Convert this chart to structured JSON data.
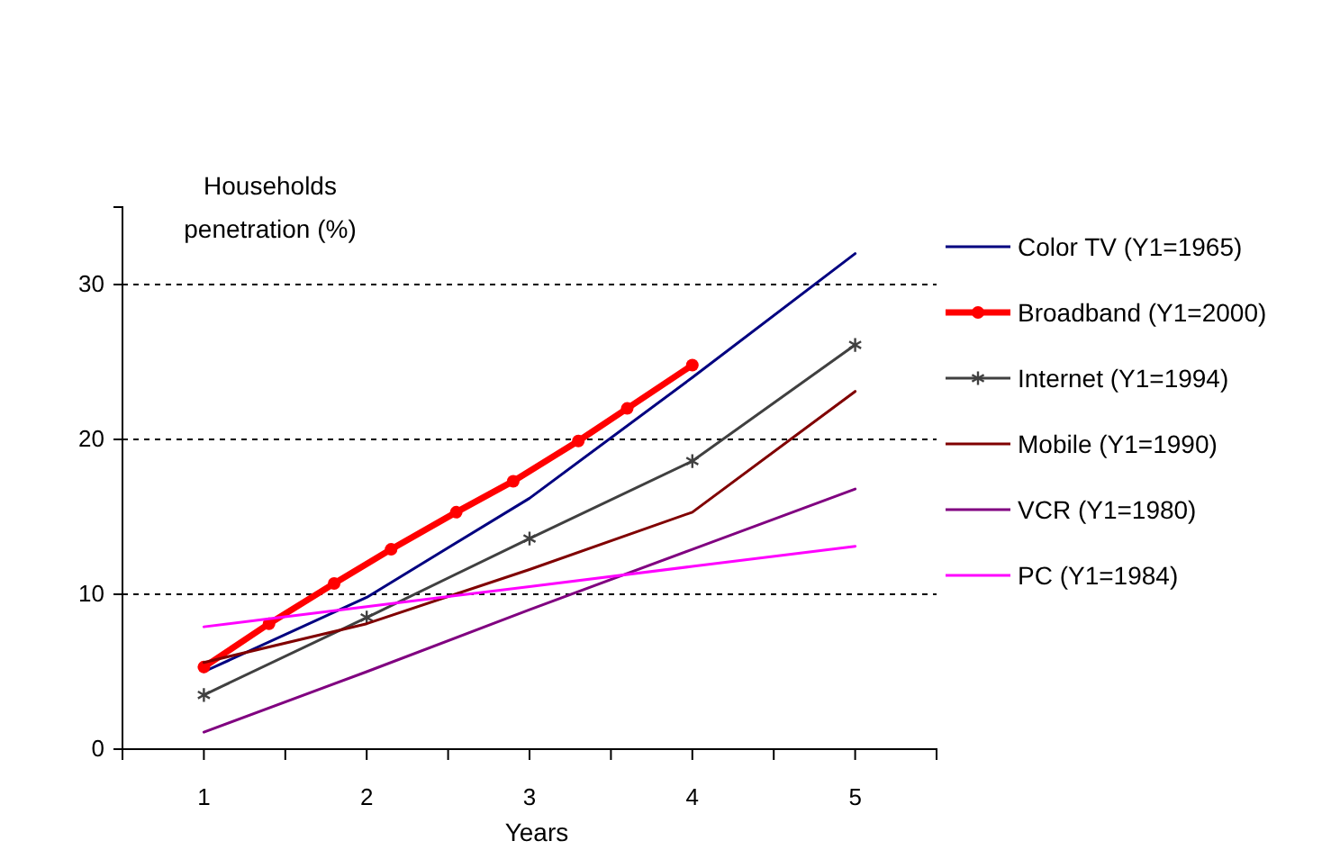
{
  "chart_data": {
    "type": "line",
    "xlabel": "Years",
    "ylabel": "Households penetration (%)",
    "x": [
      1,
      2,
      3,
      4,
      5
    ],
    "xlim": [
      0.5,
      5.5
    ],
    "xticks": [
      {
        "value": 0.5,
        "label": null
      },
      1,
      {
        "value": 1.5,
        "label": null
      },
      2,
      {
        "value": 2.5,
        "label": null
      },
      3,
      {
        "value": 3.5,
        "label": null
      },
      4,
      {
        "value": 4.5,
        "label": null
      },
      5
    ],
    "ylim": [
      0,
      35
    ],
    "yticks": [
      0,
      10,
      20,
      30
    ],
    "grid": "y",
    "legend": "right",
    "series": [
      {
        "name": "Color TV (Y1=1965)",
        "color": "#000080",
        "values": [
          5.0,
          9.8,
          16.2,
          24.0,
          32.0
        ],
        "marker": "none"
      },
      {
        "name": "Broadband (Y1=2000)",
        "color": "#ff0000",
        "x": [
          1,
          1.4,
          1.8,
          2.15,
          2.55,
          2.9,
          3.3,
          3.6,
          4
        ],
        "values": [
          5.3,
          8.1,
          10.7,
          12.9,
          15.3,
          17.3,
          19.9,
          22.0,
          24.8
        ],
        "marker": "circle"
      },
      {
        "name": "Internet (Y1=1994)",
        "color": "#404040",
        "values": [
          3.5,
          8.5,
          13.6,
          18.6,
          26.1
        ],
        "marker": "cross"
      },
      {
        "name": "Mobile (Y1=1990)",
        "color": "#800000",
        "values": [
          5.6,
          8.1,
          11.6,
          15.3,
          23.1
        ],
        "marker": "none"
      },
      {
        "name": "VCR (Y1=1980)",
        "color": "#800080",
        "values": [
          1.1,
          5.0,
          9.0,
          12.9,
          16.8
        ],
        "marker": "none"
      },
      {
        "name": "PC (Y1=1984)",
        "color": "#ff00ff",
        "values": [
          7.9,
          9.2,
          10.5,
          11.8,
          13.1
        ],
        "marker": "none"
      }
    ]
  }
}
